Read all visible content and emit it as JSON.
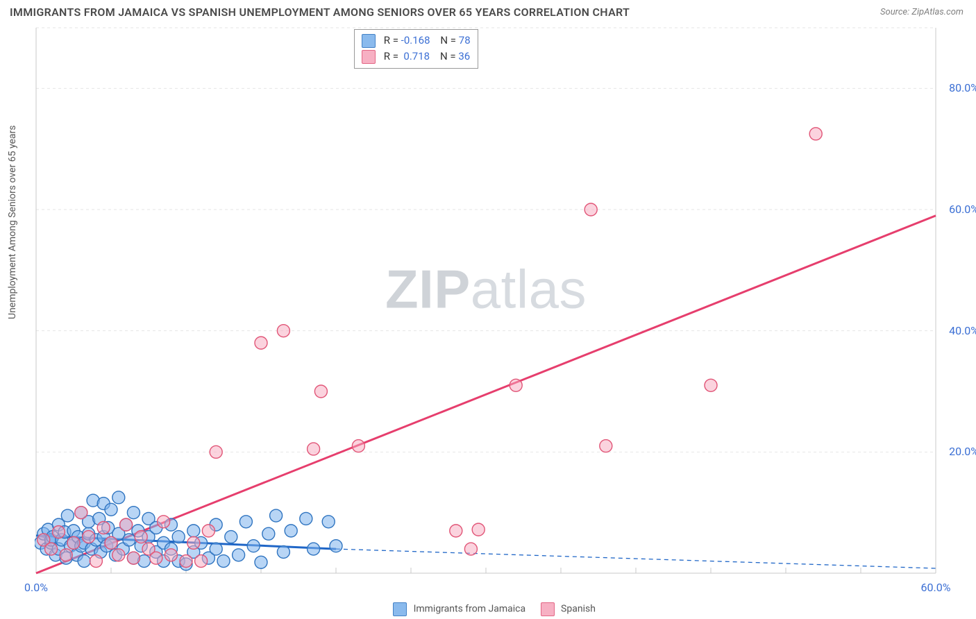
{
  "title": "IMMIGRANTS FROM JAMAICA VS SPANISH UNEMPLOYMENT AMONG SENIORS OVER 65 YEARS CORRELATION CHART",
  "source": "Source: ZipAtlas.com",
  "y_axis_label": "Unemployment Among Seniors over 65 years",
  "watermark_bold": "ZIP",
  "watermark_rest": "atlas",
  "chart": {
    "type": "scatter",
    "plot_bg": "#ffffff",
    "grid_color": "#e6e6e6",
    "axis_color": "#c9c9c9",
    "tick_label_color": "#3b6fd4",
    "xlim": [
      0,
      60
    ],
    "ylim": [
      0,
      90
    ],
    "x_ticks": [
      0,
      5,
      10,
      15,
      20,
      25,
      30,
      35,
      40,
      45,
      50,
      55,
      60
    ],
    "x_tick_labels": {
      "0": "0.0%",
      "60": "60.0%"
    },
    "y_ticks": [
      20,
      40,
      60,
      80
    ],
    "y_tick_labels": {
      "20": "20.0%",
      "40": "40.0%",
      "60": "60.0%",
      "80": "80.0%"
    },
    "marker_radius": 9,
    "marker_stroke_width": 1.4,
    "line_width": 3,
    "dash_pattern": "6,5"
  },
  "series": {
    "blue": {
      "label": "Immigrants from Jamaica",
      "fill": "#7eb3ec",
      "fill_opacity": 0.55,
      "stroke": "#2f74c0",
      "line_color": "#1f66c7",
      "R": "-0.168",
      "N": "78",
      "trend": {
        "x1": 0,
        "y1": 6.2,
        "x2": 20,
        "y2": 4.0,
        "dash_x2": 60,
        "dash_y2": 0.8
      },
      "points": [
        [
          0.3,
          5.0
        ],
        [
          0.5,
          6.5
        ],
        [
          0.7,
          4.0
        ],
        [
          0.8,
          7.2
        ],
        [
          1.0,
          5.0
        ],
        [
          1.0,
          5.5
        ],
        [
          1.1,
          6.0
        ],
        [
          1.3,
          3.0
        ],
        [
          1.5,
          8.0
        ],
        [
          1.5,
          4.0
        ],
        [
          1.7,
          5.5
        ],
        [
          1.9,
          6.8
        ],
        [
          2.0,
          2.5
        ],
        [
          2.1,
          9.5
        ],
        [
          2.3,
          4.5
        ],
        [
          2.5,
          5.0
        ],
        [
          2.5,
          7.0
        ],
        [
          2.7,
          3.0
        ],
        [
          2.8,
          6.0
        ],
        [
          3.0,
          4.5
        ],
        [
          3.0,
          10.0
        ],
        [
          3.2,
          5.0
        ],
        [
          3.2,
          2.0
        ],
        [
          3.5,
          6.5
        ],
        [
          3.5,
          8.5
        ],
        [
          3.7,
          4.0
        ],
        [
          3.8,
          12.0
        ],
        [
          4.0,
          5.5
        ],
        [
          4.2,
          9.0
        ],
        [
          4.3,
          3.5
        ],
        [
          4.5,
          6.0
        ],
        [
          4.5,
          11.5
        ],
        [
          4.7,
          4.5
        ],
        [
          4.8,
          7.5
        ],
        [
          5.0,
          5.0
        ],
        [
          5.0,
          10.5
        ],
        [
          5.3,
          3.0
        ],
        [
          5.5,
          6.5
        ],
        [
          5.5,
          12.5
        ],
        [
          5.8,
          4.0
        ],
        [
          6.0,
          8.0
        ],
        [
          6.2,
          5.5
        ],
        [
          6.5,
          10.0
        ],
        [
          6.5,
          2.5
        ],
        [
          6.8,
          7.0
        ],
        [
          7.0,
          4.5
        ],
        [
          7.2,
          2.0
        ],
        [
          7.5,
          6.0
        ],
        [
          7.5,
          9.0
        ],
        [
          8.0,
          3.5
        ],
        [
          8.0,
          7.5
        ],
        [
          8.5,
          5.0
        ],
        [
          8.5,
          2.0
        ],
        [
          9.0,
          4.0
        ],
        [
          9.0,
          8.0
        ],
        [
          9.5,
          6.0
        ],
        [
          9.5,
          2.0
        ],
        [
          10.0,
          1.5
        ],
        [
          10.5,
          3.5
        ],
        [
          10.5,
          7.0
        ],
        [
          11.0,
          5.0
        ],
        [
          11.5,
          2.5
        ],
        [
          12.0,
          4.0
        ],
        [
          12.0,
          8.0
        ],
        [
          12.5,
          2.0
        ],
        [
          13.0,
          6.0
        ],
        [
          13.5,
          3.0
        ],
        [
          14.0,
          8.5
        ],
        [
          14.5,
          4.5
        ],
        [
          15.0,
          1.8
        ],
        [
          15.5,
          6.5
        ],
        [
          16.0,
          9.5
        ],
        [
          16.5,
          3.5
        ],
        [
          17.0,
          7.0
        ],
        [
          18.0,
          9.0
        ],
        [
          18.5,
          4.0
        ],
        [
          19.5,
          8.5
        ],
        [
          20.0,
          4.5
        ]
      ]
    },
    "pink": {
      "label": "Spanish",
      "fill": "#f7a8bd",
      "fill_opacity": 0.5,
      "stroke": "#e15577",
      "line_color": "#e63e6d",
      "R": "0.718",
      "N": "36",
      "trend": {
        "x1": 0,
        "y1": 0.0,
        "x2": 60,
        "y2": 59.0
      },
      "points": [
        [
          0.5,
          5.5
        ],
        [
          1.0,
          4.0
        ],
        [
          1.5,
          6.8
        ],
        [
          2.0,
          3.0
        ],
        [
          2.5,
          5.0
        ],
        [
          3.0,
          10.0
        ],
        [
          3.5,
          6.0
        ],
        [
          4.0,
          2.0
        ],
        [
          4.5,
          7.5
        ],
        [
          5.0,
          5.0
        ],
        [
          5.5,
          3.0
        ],
        [
          6.0,
          8.0
        ],
        [
          6.5,
          2.5
        ],
        [
          7.0,
          6.0
        ],
        [
          7.5,
          4.0
        ],
        [
          8.0,
          2.5
        ],
        [
          8.5,
          8.5
        ],
        [
          9.0,
          3.0
        ],
        [
          10.0,
          2.0
        ],
        [
          10.5,
          5.0
        ],
        [
          11.0,
          2.0
        ],
        [
          12.0,
          20.0
        ],
        [
          15.0,
          38.0
        ],
        [
          16.5,
          40.0
        ],
        [
          18.5,
          20.5
        ],
        [
          19.0,
          30.0
        ],
        [
          21.5,
          21.0
        ],
        [
          28.0,
          7.0
        ],
        [
          29.5,
          7.2
        ],
        [
          29.0,
          4.0
        ],
        [
          32.0,
          31.0
        ],
        [
          37.0,
          60.0
        ],
        [
          38.0,
          21.0
        ],
        [
          45.0,
          31.0
        ],
        [
          52.0,
          72.5
        ],
        [
          11.5,
          7.0
        ]
      ]
    }
  },
  "rn_box": {
    "r_label": "R =",
    "n_label": "N ="
  },
  "bottom_legend": {
    "a_label": "Immigrants from Jamaica",
    "b_label": "Spanish"
  }
}
